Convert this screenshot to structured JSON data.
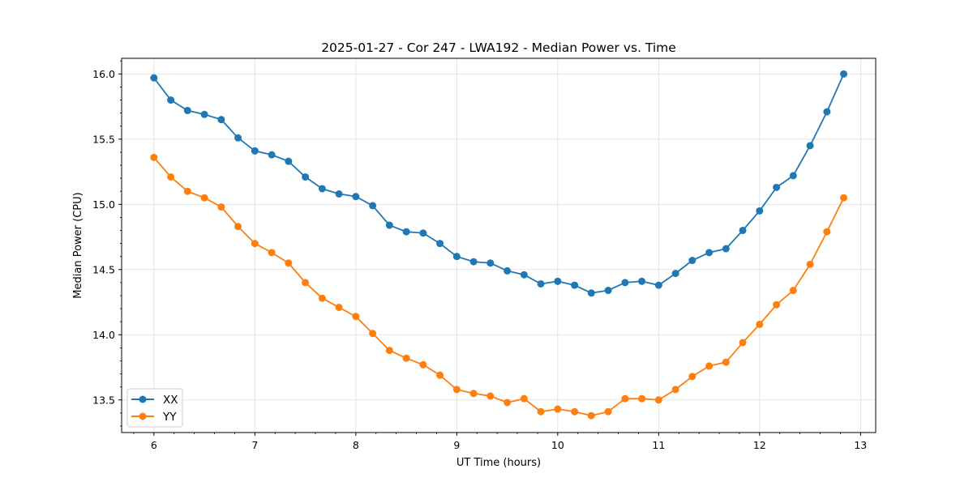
{
  "chart_data": {
    "type": "line",
    "title": "2025-01-27 - Cor 247 - LWA192 - Median Power vs. Time",
    "xlabel": "UT Time (hours)",
    "ylabel": "Median Power (CPU)",
    "xlim": [
      5.68,
      13.15
    ],
    "ylim": [
      13.25,
      16.12
    ],
    "xticks": [
      6,
      7,
      8,
      9,
      10,
      11,
      12,
      13
    ],
    "yticks": [
      13.5,
      14.0,
      14.5,
      15.0,
      15.5,
      16.0
    ],
    "xtick_labels": [
      "6",
      "7",
      "8",
      "9",
      "10",
      "11",
      "12",
      "13"
    ],
    "ytick_labels": [
      "13.5",
      "14.0",
      "14.5",
      "15.0",
      "15.5",
      "16.0"
    ],
    "grid": true,
    "legend_position": "lower-left",
    "x": [
      6.0,
      6.167,
      6.333,
      6.5,
      6.667,
      6.833,
      7.0,
      7.167,
      7.333,
      7.5,
      7.667,
      7.833,
      8.0,
      8.167,
      8.333,
      8.5,
      8.667,
      8.833,
      9.0,
      9.167,
      9.333,
      9.5,
      9.667,
      9.833,
      10.0,
      10.167,
      10.333,
      10.5,
      10.667,
      10.833,
      11.0,
      11.167,
      11.333,
      11.5,
      11.667,
      11.833,
      12.0,
      12.167,
      12.333,
      12.5,
      12.667,
      12.833
    ],
    "series": [
      {
        "name": "XX",
        "color": "#1f77b4",
        "values": [
          15.97,
          15.8,
          15.72,
          15.69,
          15.65,
          15.51,
          15.41,
          15.38,
          15.33,
          15.21,
          15.12,
          15.08,
          15.06,
          14.99,
          14.84,
          14.79,
          14.78,
          14.7,
          14.6,
          14.56,
          14.55,
          14.49,
          14.46,
          14.39,
          14.41,
          14.38,
          14.32,
          14.34,
          14.4,
          14.41,
          14.38,
          14.47,
          14.57,
          14.63,
          14.66,
          14.8,
          14.95,
          15.13,
          15.22,
          15.45,
          15.71,
          16.0
        ]
      },
      {
        "name": "YY",
        "color": "#ff7f0e",
        "values": [
          15.36,
          15.21,
          15.1,
          15.05,
          14.98,
          14.83,
          14.7,
          14.63,
          14.55,
          14.4,
          14.28,
          14.21,
          14.14,
          14.01,
          13.88,
          13.82,
          13.77,
          13.69,
          13.58,
          13.55,
          13.53,
          13.48,
          13.51,
          13.41,
          13.43,
          13.41,
          13.38,
          13.41,
          13.51,
          13.51,
          13.5,
          13.58,
          13.68,
          13.76,
          13.79,
          13.94,
          14.08,
          14.23,
          14.34,
          14.54,
          14.79,
          15.05
        ]
      }
    ]
  }
}
